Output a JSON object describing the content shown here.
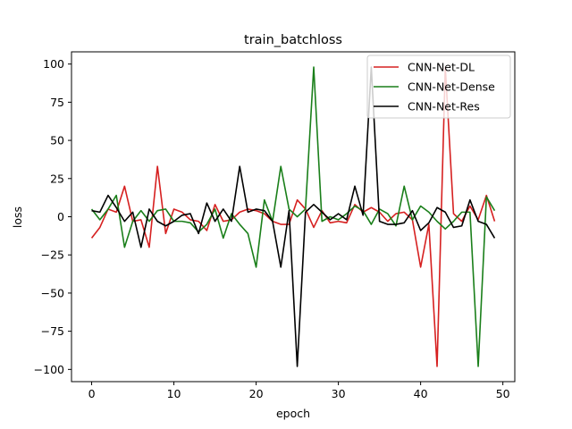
{
  "chart_data": {
    "type": "line",
    "title": "train_batchloss",
    "xlabel": "epoch",
    "ylabel": "loss",
    "xlim": [
      -2.45,
      51.45
    ],
    "ylim": [
      -108,
      108
    ],
    "xticks": [
      0,
      10,
      20,
      30,
      40,
      50
    ],
    "yticks": [
      -100,
      -75,
      -50,
      -25,
      0,
      25,
      50,
      75,
      100
    ],
    "ytick_labels": [
      "−100",
      "−75",
      "−50",
      "−25",
      "0",
      "25",
      "50",
      "75",
      "100"
    ],
    "grid": false,
    "legend_position": "top-right",
    "x": [
      0,
      1,
      2,
      3,
      4,
      5,
      6,
      7,
      8,
      9,
      10,
      11,
      12,
      13,
      14,
      15,
      16,
      17,
      18,
      19,
      20,
      21,
      22,
      23,
      24,
      25,
      26,
      27,
      28,
      29,
      30,
      31,
      32,
      33,
      34,
      35,
      36,
      37,
      38,
      39,
      40,
      41,
      42,
      43,
      44,
      45,
      46,
      47,
      48,
      49
    ],
    "series": [
      {
        "name": "CNN-Net-DL",
        "color": "#d62020",
        "values": [
          -14,
          -7,
          5,
          3,
          20,
          -3,
          -2,
          -20,
          33,
          -11,
          5,
          3,
          -2,
          -3,
          -9,
          8,
          -3,
          -2,
          3,
          5,
          4,
          2,
          -3,
          -5,
          -5,
          11,
          5,
          -7,
          4,
          -4,
          -3,
          -4,
          8,
          3,
          6,
          3,
          -3,
          2,
          3,
          -2,
          -33,
          -5,
          -98,
          98,
          2,
          -3,
          7,
          -2,
          14,
          -3
        ]
      },
      {
        "name": "CNN-Net-Dense",
        "color": "#1a7f1a",
        "values": [
          5,
          -2,
          5,
          14,
          -20,
          -3,
          4,
          -3,
          4,
          5,
          -3,
          -3,
          -4,
          -10,
          -5,
          5,
          -14,
          2,
          -5,
          -11,
          -33,
          11,
          -3,
          33,
          5,
          0,
          5,
          98,
          -3,
          0,
          -2,
          2,
          7,
          4,
          -5,
          5,
          2,
          -6,
          20,
          -2,
          7,
          3,
          -3,
          -8,
          -3,
          3,
          3,
          -98,
          13,
          4
        ]
      },
      {
        "name": "CNN-Net-Res",
        "color": "#000000",
        "values": [
          4,
          3,
          14,
          6,
          -3,
          3,
          -20,
          5,
          -3,
          -6,
          -3,
          1,
          2,
          -11,
          9,
          -3,
          5,
          -3,
          33,
          3,
          5,
          4,
          -3,
          -33,
          4,
          -98,
          3,
          8,
          3,
          -2,
          2,
          -2,
          20,
          1,
          98,
          -3,
          -5,
          -5,
          -4,
          4,
          -9,
          -4,
          6,
          3,
          -7,
          -6,
          11,
          -3,
          -5,
          -14
        ]
      }
    ]
  }
}
